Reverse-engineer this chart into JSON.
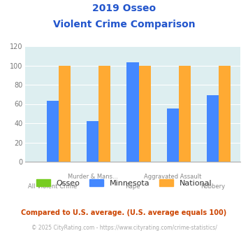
{
  "title_line1": "2019 Osseo",
  "title_line2": "Violent Crime Comparison",
  "categories": [
    "All Violent Crime",
    "Murder & Mans...",
    "Rape",
    "Aggravated Assault",
    "Robbery"
  ],
  "top_labels": [
    "",
    "Murder & Mans...",
    "",
    "Aggravated Assault",
    ""
  ],
  "bottom_labels": [
    "All Violent Crime",
    "",
    "Rape",
    "",
    "Robbery"
  ],
  "osseo": [
    0,
    0,
    0,
    0,
    0
  ],
  "minnesota": [
    63,
    42,
    103,
    55,
    69
  ],
  "national": [
    100,
    100,
    100,
    100,
    100
  ],
  "osseo_color": "#77cc22",
  "minnesota_color": "#4488ff",
  "national_color": "#ffaa33",
  "title_color": "#2255cc",
  "ylim": [
    0,
    120
  ],
  "yticks": [
    0,
    20,
    40,
    60,
    80,
    100,
    120
  ],
  "bg_color": "#ddeef0",
  "fig_bg": "#ffffff",
  "footnote1": "Compared to U.S. average. (U.S. average equals 100)",
  "footnote2": "© 2025 CityRating.com - https://www.cityrating.com/crime-statistics/",
  "footnote1_color": "#cc4400",
  "footnote2_color": "#aaaaaa",
  "bar_width": 0.3,
  "legend_labels": [
    "Osseo",
    "Minnesota",
    "National"
  ]
}
